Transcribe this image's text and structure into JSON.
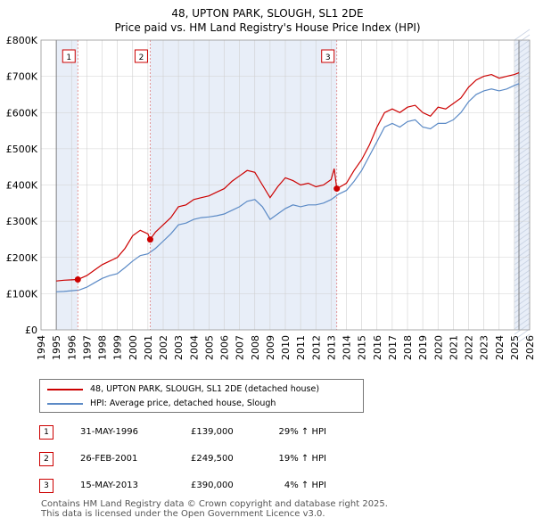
{
  "chart_data": {
    "type": "line",
    "title": "48, UPTON PARK, SLOUGH, SL1 2DE",
    "subtitle": "Price paid vs. HM Land Registry's House Price Index (HPI)",
    "xlabel": "",
    "ylabel": "",
    "xlim": [
      1994,
      2026
    ],
    "ylim": [
      0,
      800000
    ],
    "yticks": [
      {
        "value": 0,
        "label": "£0"
      },
      {
        "value": 100000,
        "label": "£100K"
      },
      {
        "value": 200000,
        "label": "£200K"
      },
      {
        "value": 300000,
        "label": "£300K"
      },
      {
        "value": 400000,
        "label": "£400K"
      },
      {
        "value": 500000,
        "label": "£500K"
      },
      {
        "value": 600000,
        "label": "£600K"
      },
      {
        "value": 700000,
        "label": "£700K"
      },
      {
        "value": 800000,
        "label": "£800K"
      }
    ],
    "xticks": [
      "1994",
      "1995",
      "1996",
      "1997",
      "1998",
      "1999",
      "2000",
      "2001",
      "2002",
      "2003",
      "2004",
      "2005",
      "2006",
      "2007",
      "2008",
      "2009",
      "2010",
      "2011",
      "2012",
      "2013",
      "2014",
      "2015",
      "2016",
      "2017",
      "2018",
      "2019",
      "2020",
      "2021",
      "2022",
      "2023",
      "2024",
      "2025",
      "2026"
    ],
    "grid": true,
    "data_range": [
      1995.0,
      2025.3
    ],
    "shaded_ranges": [
      [
        1995.0,
        1996.41
      ],
      [
        2001.15,
        2013.37
      ],
      [
        2025.0,
        2026.0
      ]
    ],
    "series": [
      {
        "name": "48, UPTON PARK, SLOUGH, SL1 2DE (detached house)",
        "color": "#cc0000",
        "x": [
          1995.0,
          1995.5,
          1996.0,
          1996.41,
          1997.0,
          1997.5,
          1998.0,
          1998.5,
          1999.0,
          1999.5,
          2000.0,
          2000.5,
          2001.0,
          2001.15,
          2001.5,
          2002.0,
          2002.5,
          2003.0,
          2003.5,
          2004.0,
          2004.5,
          2005.0,
          2005.5,
          2006.0,
          2006.5,
          2007.0,
          2007.5,
          2008.0,
          2008.5,
          2009.0,
          2009.5,
          2010.0,
          2010.5,
          2011.0,
          2011.5,
          2012.0,
          2012.5,
          2013.0,
          2013.2,
          2013.37,
          2013.6,
          2014.0,
          2014.5,
          2015.0,
          2015.5,
          2016.0,
          2016.5,
          2017.0,
          2017.5,
          2018.0,
          2018.5,
          2019.0,
          2019.5,
          2020.0,
          2020.5,
          2021.0,
          2021.5,
          2022.0,
          2022.5,
          2023.0,
          2023.5,
          2024.0,
          2024.5,
          2025.0,
          2025.3
        ],
        "values": [
          135000,
          137000,
          138000,
          139000,
          150000,
          165000,
          180000,
          190000,
          200000,
          225000,
          260000,
          275000,
          265000,
          249500,
          270000,
          290000,
          310000,
          340000,
          345000,
          360000,
          365000,
          370000,
          380000,
          390000,
          410000,
          425000,
          440000,
          435000,
          400000,
          365000,
          395000,
          420000,
          412000,
          400000,
          405000,
          395000,
          400000,
          415000,
          445000,
          390000,
          395000,
          405000,
          440000,
          470000,
          510000,
          560000,
          600000,
          610000,
          600000,
          615000,
          620000,
          600000,
          590000,
          615000,
          610000,
          625000,
          640000,
          670000,
          690000,
          700000,
          705000,
          695000,
          700000,
          705000,
          710000
        ]
      },
      {
        "name": "HPI: Average price, detached house, Slough",
        "color": "#5b8ac6",
        "x": [
          1995.0,
          1995.5,
          1996.0,
          1996.5,
          1997.0,
          1997.5,
          1998.0,
          1998.5,
          1999.0,
          1999.5,
          2000.0,
          2000.5,
          2001.0,
          2001.5,
          2002.0,
          2002.5,
          2003.0,
          2003.5,
          2004.0,
          2004.5,
          2005.0,
          2005.5,
          2006.0,
          2006.5,
          2007.0,
          2007.5,
          2008.0,
          2008.5,
          2009.0,
          2009.5,
          2010.0,
          2010.5,
          2011.0,
          2011.5,
          2012.0,
          2012.5,
          2013.0,
          2013.5,
          2014.0,
          2014.5,
          2015.0,
          2015.5,
          2016.0,
          2016.5,
          2017.0,
          2017.5,
          2018.0,
          2018.5,
          2019.0,
          2019.5,
          2020.0,
          2020.5,
          2021.0,
          2021.5,
          2022.0,
          2022.5,
          2023.0,
          2023.5,
          2024.0,
          2024.5,
          2025.0,
          2025.3
        ],
        "values": [
          105000,
          106000,
          108000,
          110000,
          118000,
          130000,
          142000,
          150000,
          155000,
          172000,
          190000,
          205000,
          210000,
          225000,
          245000,
          265000,
          290000,
          295000,
          305000,
          310000,
          312000,
          315000,
          320000,
          330000,
          340000,
          355000,
          360000,
          340000,
          305000,
          320000,
          335000,
          345000,
          340000,
          345000,
          345000,
          350000,
          360000,
          375000,
          385000,
          410000,
          440000,
          480000,
          520000,
          560000,
          570000,
          560000,
          575000,
          580000,
          560000,
          555000,
          570000,
          570000,
          580000,
          600000,
          630000,
          650000,
          660000,
          665000,
          660000,
          665000,
          675000,
          680000
        ]
      }
    ],
    "markers": [
      {
        "label": "1",
        "x": 1996.41,
        "y": 139000
      },
      {
        "label": "2",
        "x": 2001.15,
        "y": 249500
      },
      {
        "label": "3",
        "x": 2013.37,
        "y": 390000
      }
    ],
    "legend": {
      "placement": "below",
      "entries": [
        {
          "label": "48, UPTON PARK, SLOUGH, SL1 2DE (detached house)",
          "color": "#cc0000"
        },
        {
          "label": "HPI: Average price, detached house, Slough",
          "color": "#5b8ac6"
        }
      ]
    }
  },
  "transactions": [
    {
      "num": "1",
      "date": "31-MAY-1996",
      "price": "£139,000",
      "hpi": "29% ↑ HPI"
    },
    {
      "num": "2",
      "date": "26-FEB-2001",
      "price": "£249,500",
      "hpi": "19% ↑ HPI"
    },
    {
      "num": "3",
      "date": "15-MAY-2013",
      "price": "£390,000",
      "hpi": "4% ↑ HPI"
    }
  ],
  "footer": {
    "line1": "Contains HM Land Registry data © Crown copyright and database right 2025.",
    "line2": "This data is licensed under the Open Government Licence v3.0."
  },
  "colors": {
    "property": "#cc0000",
    "hpi": "#5b8ac6",
    "shade": "#e8eef8",
    "grid": "#d0d0d0",
    "marker_border": "#cc0000"
  }
}
